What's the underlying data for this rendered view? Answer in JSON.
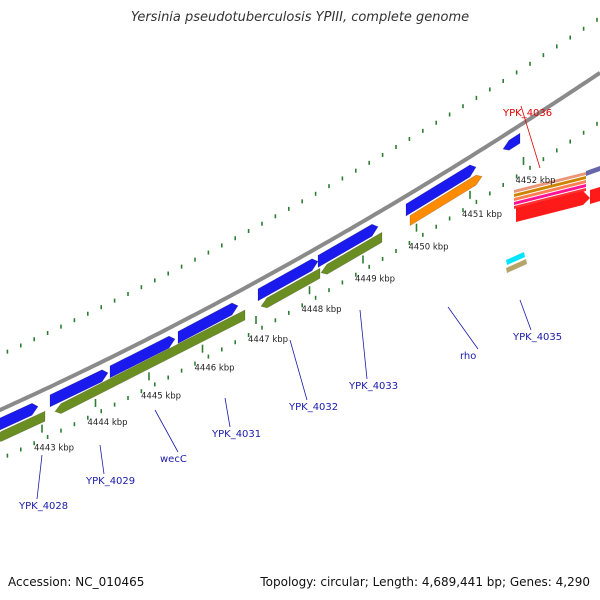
{
  "title": "Yersinia pseudotuberculosis YPIII, complete genome",
  "footer": {
    "accession": "Accession: NC_010465",
    "summary": "Topology: circular; Length: 4,689,441 bp; Genes: 4,290"
  },
  "colors": {
    "backbone": "#8a8a8a",
    "tick": "#2e7d32",
    "forward_gene": "#1a1aee",
    "reverse_gene": "#6b8e23",
    "rho_gene": "#ff8c00",
    "label_blue": "#1a1aaa",
    "label_red": "#dd0000"
  },
  "scale": {
    "unit": "kbp",
    "ticks": [
      {
        "kbp": 4443,
        "label": "4443 kbp"
      },
      {
        "kbp": 4444,
        "label": "4444 kbp"
      },
      {
        "kbp": 4445,
        "label": "4445 kbp"
      },
      {
        "kbp": 4446,
        "label": "4446 kbp"
      },
      {
        "kbp": 4447,
        "label": "4447 kbp"
      },
      {
        "kbp": 4448,
        "label": "4448 kbp"
      },
      {
        "kbp": 4449,
        "label": "4449 kbp"
      },
      {
        "kbp": 4450,
        "label": "4450 kbp"
      },
      {
        "kbp": 4451,
        "label": "4451 kbp"
      },
      {
        "kbp": 4452,
        "label": "4452 kbp"
      }
    ]
  },
  "gene_labels": [
    {
      "name": "YPK_4028",
      "color": "blue"
    },
    {
      "name": "YPK_4029",
      "color": "blue"
    },
    {
      "name": "wecC",
      "color": "blue"
    },
    {
      "name": "YPK_4031",
      "color": "blue"
    },
    {
      "name": "YPK_4032",
      "color": "blue"
    },
    {
      "name": "YPK_4033",
      "color": "blue"
    },
    {
      "name": "rho",
      "color": "blue"
    },
    {
      "name": "YPK_4035",
      "color": "blue"
    },
    {
      "name": "YPK_4036",
      "color": "red"
    }
  ]
}
